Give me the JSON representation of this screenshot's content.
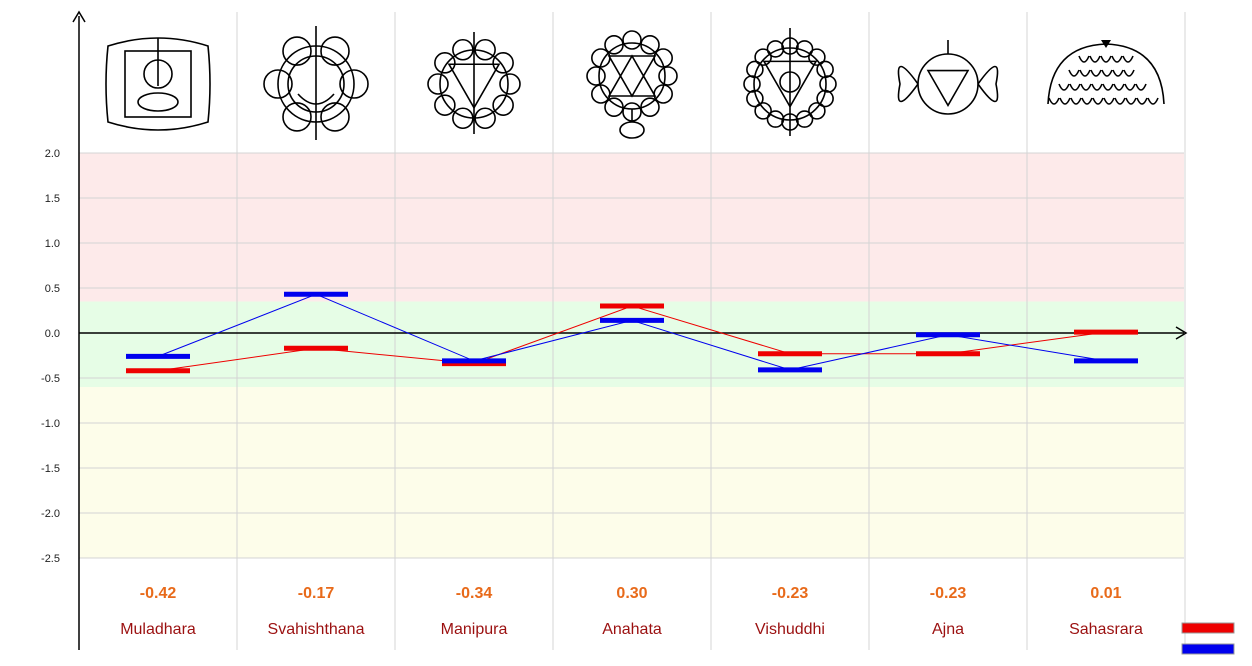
{
  "chart_data": {
    "type": "line",
    "title": "",
    "xlabel": "",
    "ylabel": "",
    "categories": [
      "Muladhara",
      "Svahishthana",
      "Manipura",
      "Anahata",
      "Vishuddhi",
      "Ajna",
      "Sahasrara"
    ],
    "value_labels": [
      "-0.42",
      "-0.17",
      "-0.34",
      "0.30",
      "-0.23",
      "-0.23",
      "0.01"
    ],
    "series": [
      {
        "color": "#ee0000",
        "values": [
          -0.42,
          -0.17,
          -0.34,
          0.3,
          -0.23,
          -0.23,
          0.01
        ]
      },
      {
        "color": "#0000ee",
        "values": [
          -0.26,
          0.43,
          -0.31,
          0.14,
          -0.41,
          -0.02,
          -0.31
        ]
      }
    ],
    "yticks": [
      "2.0",
      "1.5",
      "1.0",
      "0.5",
      "0.0",
      "-0.5",
      "-1.0",
      "-1.5",
      "-2.0",
      "-2.5"
    ],
    "ylim": [
      -2.5,
      2.0
    ],
    "grid": true,
    "bands": [
      {
        "from": 0.35,
        "to": 2.0,
        "color": "#fdeaea"
      },
      {
        "from": -0.6,
        "to": 0.35,
        "color": "#e6fde6"
      },
      {
        "from": -2.5,
        "to": -0.6,
        "color": "#fdfdea"
      }
    ],
    "legend": "bottom-right",
    "icons": [
      "muladhara-chakra-icon",
      "svadhisthana-chakra-icon",
      "manipura-chakra-icon",
      "anahata-chakra-icon",
      "vishuddhi-chakra-icon",
      "ajna-chakra-icon",
      "sahasrara-chakra-icon"
    ]
  }
}
